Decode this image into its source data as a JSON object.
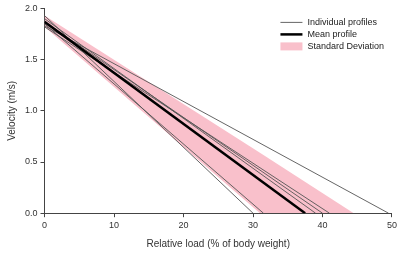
{
  "chart_data": {
    "type": "line",
    "x_label": "Relative load (% of body weight)",
    "y_label": "Velocity (m/s)",
    "xlim": [
      0,
      50
    ],
    "xticks": [
      0,
      10,
      20,
      30,
      40,
      50
    ],
    "ylim": [
      0,
      2
    ],
    "yticks": [
      {
        "value": 0,
        "label": "0.0"
      },
      0.5,
      {
        "value": 1,
        "label": "1.0"
      },
      1.5,
      {
        "value": 2,
        "label": "2.0"
      }
    ],
    "grid": false,
    "legend": "upper right",
    "series": [
      {
        "name": "Individual profiles",
        "color": "#555555",
        "type": "line",
        "line_style": "solid",
        "x": [
          0,
          30
        ],
        "values": [
          1.93,
          0
        ]
      },
      {
        "name": "Individual profiles",
        "color": "#555555",
        "type": "line",
        "line_style": "solid",
        "x": [
          0,
          31.5
        ],
        "values": [
          1.85,
          0
        ]
      },
      {
        "name": "Individual profiles",
        "color": "#555555",
        "type": "line",
        "line_style": "solid",
        "x": [
          0,
          39
        ],
        "values": [
          1.9,
          0
        ]
      },
      {
        "name": "Individual profiles",
        "color": "#555555",
        "type": "line",
        "line_style": "solid",
        "x": [
          0,
          40
        ],
        "values": [
          1.87,
          0
        ]
      },
      {
        "name": "Individual profiles",
        "color": "#555555",
        "type": "line",
        "line_style": "solid",
        "x": [
          0,
          41
        ],
        "values": [
          1.82,
          0
        ]
      },
      {
        "name": "Individual profiles",
        "color": "#555555",
        "type": "line",
        "line_style": "solid",
        "x": [
          0,
          49.5
        ],
        "values": [
          1.83,
          0
        ]
      },
      {
        "name": "Mean profile",
        "color": "#000000",
        "type": "line",
        "line_style": "bold",
        "x": [
          0,
          37.5
        ],
        "values": [
          1.87,
          0
        ]
      },
      {
        "name": "Standard Deviation",
        "color": "#f9c0cb",
        "type": "band",
        "x": [
          0,
          31,
          44.5
        ],
        "lower": [
          1.82,
          0,
          0
        ],
        "upper": [
          1.93,
          0.59,
          0
        ]
      }
    ]
  }
}
